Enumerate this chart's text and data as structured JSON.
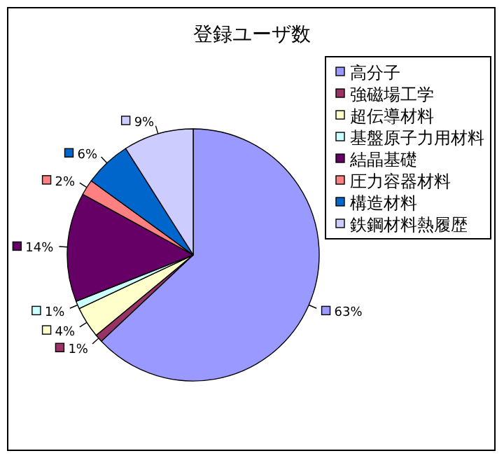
{
  "chart_data": {
    "type": "pie",
    "title": "登録ユーザ数",
    "categories": [
      "高分子",
      "強磁場工学",
      "超伝導材料",
      "基盤原子力用材料",
      "結晶基礎",
      "圧力容器材料",
      "構造材料",
      "鉄鋼材料熱履歴"
    ],
    "values": [
      63,
      1,
      4,
      1,
      14,
      2,
      6,
      9
    ],
    "value_labels": [
      "63%",
      "1%",
      "4%",
      "1%",
      "14%",
      "2%",
      "6%",
      "9%"
    ],
    "colors": [
      "#9999ff",
      "#993366",
      "#ffffcc",
      "#ccffff",
      "#660066",
      "#ff8080",
      "#0066cc",
      "#ccccff"
    ],
    "legend": "right"
  }
}
